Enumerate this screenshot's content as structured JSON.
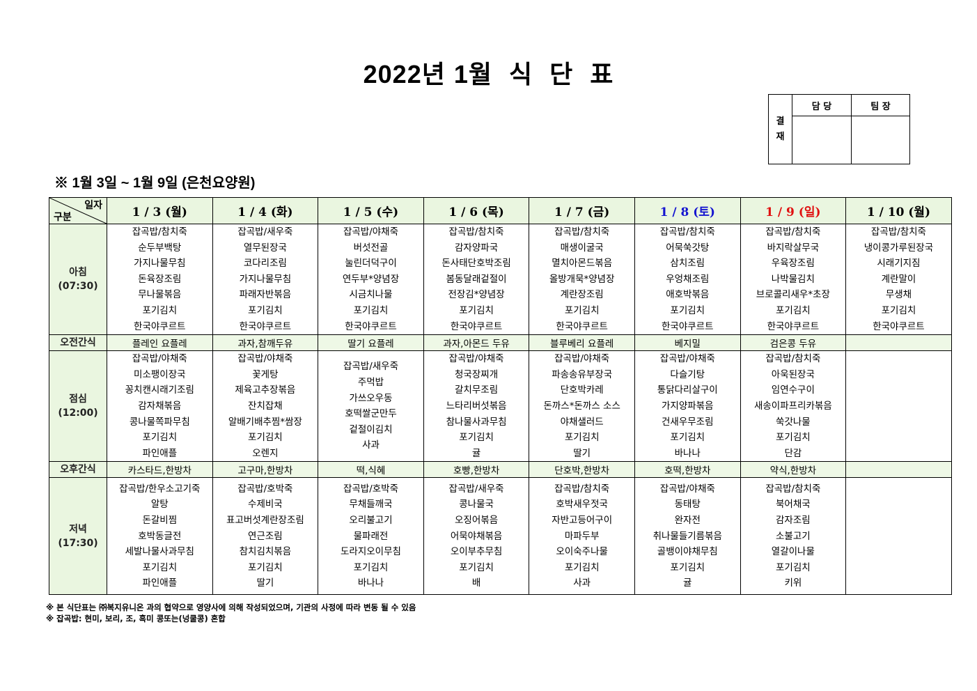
{
  "title": [
    "2022년",
    "1월",
    "식",
    "단",
    "표"
  ],
  "approval": {
    "label": [
      "결",
      "재"
    ],
    "columns": [
      "담 당",
      "팀 장"
    ]
  },
  "subtitle": "※ 1월 3일 ~ 1월 9일 (은천요양원)",
  "header": {
    "corner_top": "일자",
    "corner_bottom": "구분"
  },
  "colors": {
    "saturday": "#1515d0",
    "sunday": "#e01010",
    "header_bg": "#eaf6e0"
  },
  "days": [
    {
      "date": "1 / 3 (월)",
      "type": "weekday"
    },
    {
      "date": "1 / 4 (화)",
      "type": "weekday"
    },
    {
      "date": "1 / 5 (수)",
      "type": "weekday"
    },
    {
      "date": "1 / 6 (목)",
      "type": "weekday"
    },
    {
      "date": "1 / 7 (금)",
      "type": "weekday"
    },
    {
      "date": "1 / 8 (토)",
      "type": "saturday"
    },
    {
      "date": "1 / 9 (일)",
      "type": "sunday"
    },
    {
      "date": "1 / 10 (월)",
      "type": "weekday"
    }
  ],
  "rows": {
    "breakfast": {
      "label": "아침",
      "time": "(07:30)",
      "menus": [
        [
          "잡곡밥/참치죽",
          "순두부백탕",
          "가지나물무침",
          "돈육장조림",
          "무나물볶음",
          "포기김치",
          "한국야쿠르트"
        ],
        [
          "잡곡밥/새우죽",
          "열무된장국",
          "코다리조림",
          "가지나물무침",
          "파래자반볶음",
          "포기김치",
          "한국야쿠르트"
        ],
        [
          "잡곡밥/야채죽",
          "버섯전골",
          "눌린더덕구이",
          "연두부*양념장",
          "시금치나물",
          "포기김치",
          "한국야쿠르트"
        ],
        [
          "잡곡밥/참치죽",
          "감자양파국",
          "돈사태단호박조림",
          "봄동달래겉절이",
          "전장김*양념장",
          "포기김치",
          "한국야쿠르트"
        ],
        [
          "잡곡밥/참치죽",
          "매생이굴국",
          "멸치아몬드볶음",
          "올방개묵*양념장",
          "계란장조림",
          "포기김치",
          "한국야쿠르트"
        ],
        [
          "잡곡밥/참치죽",
          "어묵쑥갓탕",
          "삼치조림",
          "우엉채조림",
          "애호박볶음",
          "포기김치",
          "한국야쿠르트"
        ],
        [
          "잡곡밥/참치죽",
          "바지락살무국",
          "우육장조림",
          "나박물김치",
          "브로콜리새우*초장",
          "포기김치",
          "한국야쿠르트"
        ],
        [
          "잡곡밥/참치죽",
          "냉이콩가루된장국",
          "시래기지짐",
          "계란말이",
          "무생채",
          "포기김치",
          "한국야쿠르트"
        ]
      ]
    },
    "am_snack": {
      "label": "오전간식",
      "menus": [
        "플레인 요플레",
        "과자,참깨두유",
        "딸기 요플레",
        "과자,아몬드 두유",
        "블루베리 요플레",
        "베지밀",
        "검은콩 두유",
        ""
      ]
    },
    "lunch": {
      "label": "점심",
      "time": "(12:00)",
      "menus": [
        [
          "잡곡밥/야채죽",
          "미소팽이장국",
          "꽁치캔시래기조림",
          "감자채볶음",
          "콩나물쪽파무침",
          "포기김치",
          "파인애플"
        ],
        [
          "잡곡밥/야채죽",
          "꽃게탕",
          "제육고추장볶음",
          "잔치잡채",
          "알배기배추찜*쌈장",
          "포기김치",
          "오렌지"
        ],
        [
          "잡곡밥/새우죽",
          "주먹밥",
          "가쓰오우동",
          "호떡쌀군만두",
          "겉절이김치",
          "사과"
        ],
        [
          "잡곡밥/야채죽",
          "청국장찌개",
          "갈치무조림",
          "느타리버섯볶음",
          "참나물사과무침",
          "포기김치",
          "귤"
        ],
        [
          "잡곡밥/야채죽",
          "파송송유부장국",
          "단호박카레",
          "돈까스*돈까스 소스",
          "야채샐러드",
          "포기김치",
          "딸기"
        ],
        [
          "잡곡밥/야채죽",
          "다슬기탕",
          "통닭다리살구이",
          "가지양파볶음",
          "건새우무조림",
          "포기김치",
          "바나나"
        ],
        [
          "잡곡밥/참치죽",
          "아욱된장국",
          "임연수구이",
          "새송이파프리카볶음",
          "쑥갓나물",
          "포기김치",
          "단감"
        ],
        []
      ]
    },
    "pm_snack": {
      "label": "오후간식",
      "menus": [
        "카스타드,한방차",
        "고구마,한방차",
        "떡,식혜",
        "호빵,한방차",
        "단호박,한방차",
        "호떡,한방차",
        "약식,한방차",
        ""
      ]
    },
    "dinner": {
      "label": "저녁",
      "time": "(17:30)",
      "menus": [
        [
          "잡곡밥/한우소고기죽",
          "알탕",
          "돈갈비찜",
          "호박동글전",
          "세발나물사과무침",
          "포기김치",
          "파인애플"
        ],
        [
          "잡곡밥/호박죽",
          "수제비국",
          "표고버섯계란장조림",
          "연근조림",
          "참치김치볶음",
          "포기김치",
          "딸기"
        ],
        [
          "잡곡밥/호박죽",
          "무채들깨국",
          "오리불고기",
          "물파래전",
          "도라지오이무침",
          "포기김치",
          "바나나"
        ],
        [
          "잡곡밥/새우죽",
          "콩나물국",
          "오징어볶음",
          "어묵야채볶음",
          "오이부추무침",
          "포기김치",
          "배"
        ],
        [
          "잡곡밥/참치죽",
          "호박새우젓국",
          "자반고등어구이",
          "마파두부",
          "오이숙주나물",
          "포기김치",
          "사과"
        ],
        [
          "잡곡밥/야채죽",
          "동태탕",
          "완자전",
          "취나물들기름볶음",
          "골뱅이야채무침",
          "포기김치",
          "귤"
        ],
        [
          "잡곡밥/참치죽",
          "북어채국",
          "감자조림",
          "소불고기",
          "열갈이나물",
          "포기김치",
          "키위"
        ],
        []
      ]
    }
  },
  "notes": [
    "※ 본 식단표는 ㈜복지유니온 과의 협약으로 영양사에 의해 작성되었으며, 기관의 사정에 따라 변동 될 수 있음",
    "※ 잡곡밥: 현미, 보리, 조, 흑미 콩또는(넝쿨콩) 혼합"
  ]
}
